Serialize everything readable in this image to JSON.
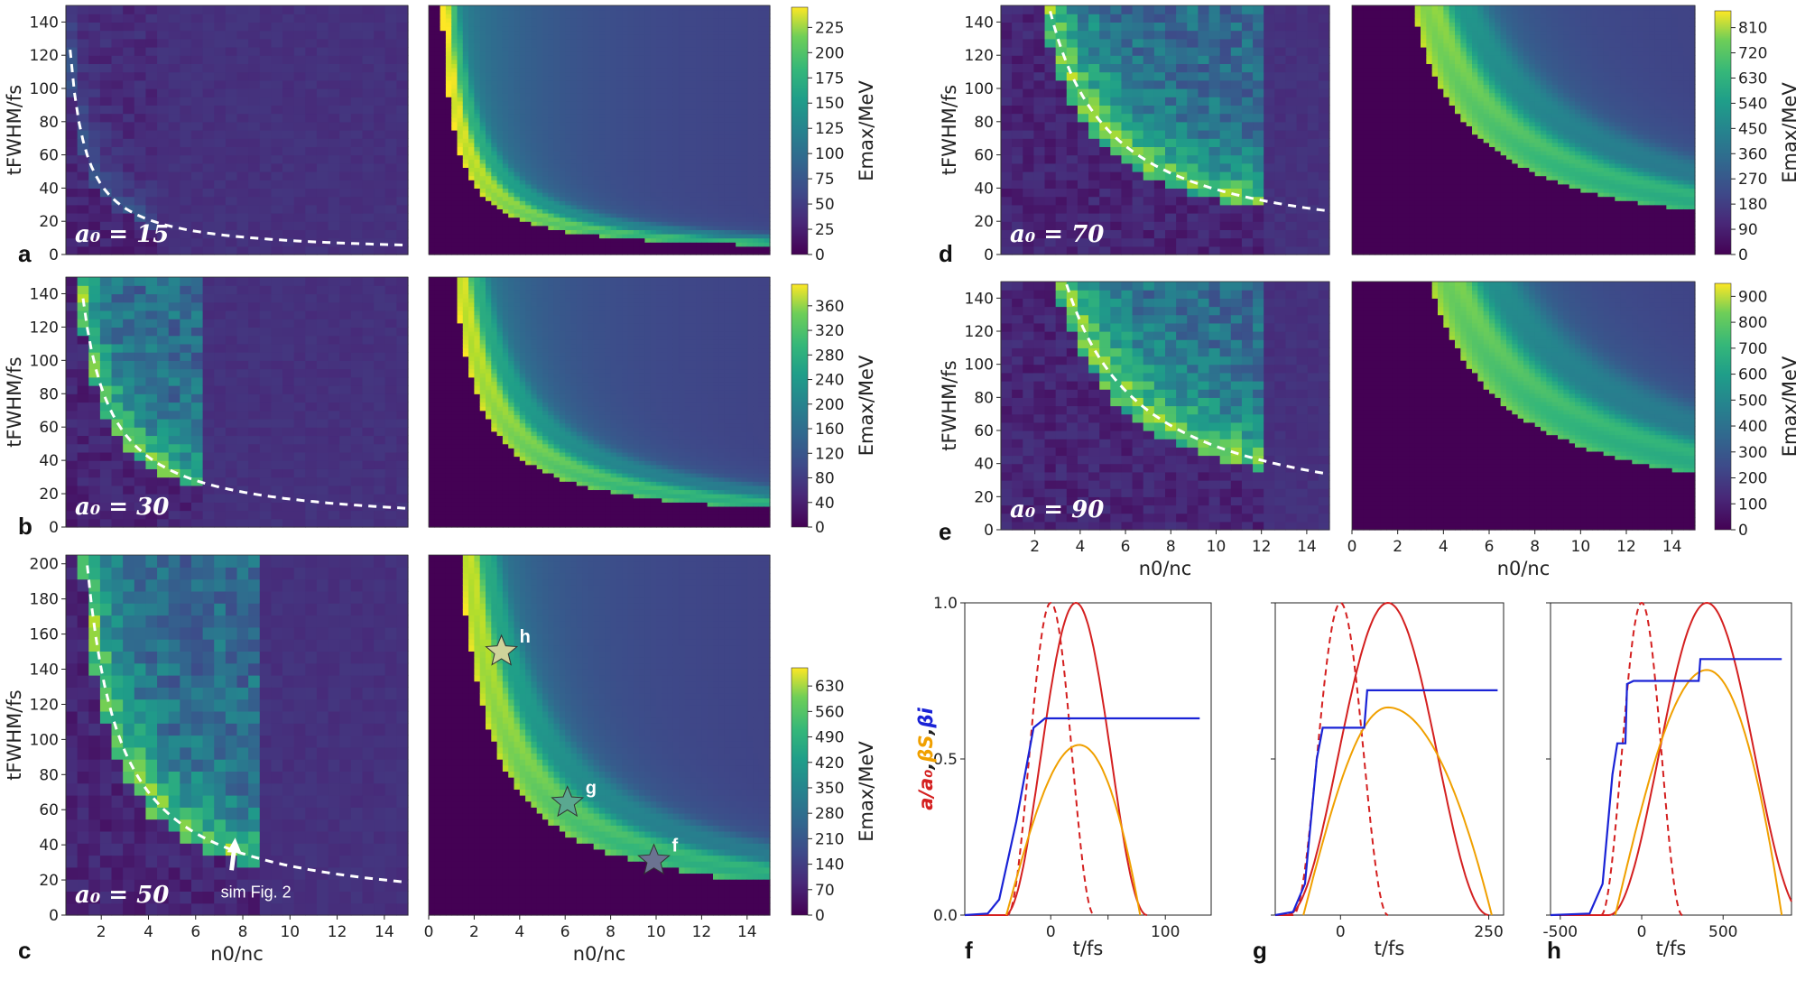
{
  "chart_data": {
    "type": "heatmap",
    "x_label": "n0/nc",
    "y_label": "tFWHM/fs",
    "colorbar_label": "Emax/MeV",
    "maps": [
      {
        "id": "a",
        "a0_label": "a₀ = 15",
        "a0": 15,
        "ylim": [
          0,
          150
        ],
        "yticks": [
          0,
          20,
          40,
          60,
          80,
          100,
          120,
          140
        ],
        "cbar_max": 245,
        "cbar_ticks": [
          0,
          25,
          50,
          75,
          100,
          125,
          150,
          175,
          200,
          225
        ]
      },
      {
        "id": "b",
        "a0_label": "a₀ = 30",
        "a0": 30,
        "ylim": [
          0,
          150
        ],
        "yticks": [
          0,
          20,
          40,
          60,
          80,
          100,
          120,
          140
        ],
        "cbar_max": 395,
        "cbar_ticks": [
          0,
          40,
          80,
          120,
          160,
          200,
          240,
          280,
          320,
          360
        ]
      },
      {
        "id": "c",
        "a0_label": "a₀ = 50",
        "a0": 50,
        "ylim": [
          0,
          205
        ],
        "yticks": [
          0,
          20,
          40,
          60,
          80,
          100,
          120,
          140,
          160,
          180,
          200
        ],
        "cbar_max": 680,
        "cbar_ticks": [
          0,
          70,
          140,
          210,
          280,
          350,
          420,
          490,
          560,
          630
        ]
      },
      {
        "id": "d",
        "a0_label": "a₀ = 70",
        "a0": 70,
        "ylim": [
          0,
          150
        ],
        "yticks": [
          0,
          20,
          40,
          60,
          80,
          100,
          120,
          140
        ],
        "cbar_max": 870,
        "cbar_ticks": [
          0,
          90,
          180,
          270,
          360,
          450,
          540,
          630,
          720,
          810
        ]
      },
      {
        "id": "e",
        "a0_label": "a₀ = 90",
        "a0": 90,
        "ylim": [
          0,
          150
        ],
        "yticks": [
          0,
          20,
          40,
          60,
          80,
          100,
          120,
          140
        ],
        "cbar_max": 950,
        "cbar_ticks": [
          0,
          100,
          200,
          300,
          400,
          500,
          600,
          700,
          800,
          900
        ]
      }
    ],
    "x_ticks_left": [
      2,
      4,
      6,
      8,
      10,
      12,
      14
    ],
    "x_ticks_right": [
      0,
      2,
      4,
      6,
      8,
      10,
      12,
      14
    ],
    "xlim": [
      0,
      15
    ],
    "stars": [
      {
        "label": "h",
        "n0": 3.2,
        "t": 150,
        "color": "#cfd39a"
      },
      {
        "label": "g",
        "n0": 6.1,
        "t": 64,
        "color": "#5aa890"
      },
      {
        "label": "f",
        "n0": 9.9,
        "t": 31,
        "color": "#6b7391"
      }
    ],
    "sim_annotation": "sim Fig. 2",
    "pulse_plots": {
      "y_label_parts": [
        "a/a₀",
        ",",
        "βS",
        ",",
        "βi"
      ],
      "x_label": "t/fs",
      "yticks": [
        0.0,
        0.5,
        1.0
      ],
      "panels": [
        {
          "id": "f",
          "xlim": [
            -75,
            140
          ],
          "xticks": [
            0,
            50,
            100
          ],
          "xtick_labels": [
            "0",
            "",
            "100"
          ],
          "a_solid": {
            "center": 22,
            "half": 62,
            "start": -60
          },
          "a_dashed": {
            "center": 0,
            "half": 38,
            "start": -40
          },
          "beta_s": {
            "peak": 0.545,
            "center": 25,
            "end": 78
          },
          "beta_i": [
            [
              -75,
              0
            ],
            [
              -55,
              0.005
            ],
            [
              -45,
              0.05
            ],
            [
              -30,
              0.3
            ],
            [
              -15,
              0.6
            ],
            [
              -5,
              0.63
            ],
            [
              130,
              0.63
            ]
          ]
        },
        {
          "id": "g",
          "xlim": [
            -110,
            275
          ],
          "xticks": [
            0,
            250
          ],
          "xtick_labels": [
            "0",
            "250"
          ],
          "a_solid": {
            "center": 80,
            "half": 170,
            "start": -110
          },
          "a_dashed": {
            "center": 0,
            "half": 80,
            "start": -90
          },
          "beta_s": {
            "peak": 0.665,
            "center": 80,
            "end": 255
          },
          "beta_i": [
            [
              -110,
              0
            ],
            [
              -80,
              0.01
            ],
            [
              -60,
              0.1
            ],
            [
              -40,
              0.5
            ],
            [
              -30,
              0.6
            ],
            [
              40,
              0.6
            ],
            [
              45,
              0.72
            ],
            [
              265,
              0.72
            ]
          ]
        },
        {
          "id": "h",
          "xlim": [
            -560,
            920
          ],
          "xticks": [
            -500,
            0,
            500
          ],
          "xtick_labels": [
            "-500",
            "0",
            "500"
          ],
          "a_solid": {
            "center": 400,
            "half": 600,
            "start": -350
          },
          "a_dashed": {
            "center": 0,
            "half": 250,
            "start": -250
          },
          "beta_s": {
            "peak": 0.785,
            "center": 400,
            "end": 860
          },
          "beta_i": [
            [
              -560,
              0
            ],
            [
              -320,
              0.005
            ],
            [
              -240,
              0.1
            ],
            [
              -180,
              0.45
            ],
            [
              -150,
              0.55
            ],
            [
              -100,
              0.55
            ],
            [
              -90,
              0.74
            ],
            [
              -50,
              0.75
            ],
            [
              350,
              0.75
            ],
            [
              360,
              0.82
            ],
            [
              860,
              0.82
            ]
          ]
        }
      ]
    }
  },
  "colors": {
    "red": "#d42020",
    "orange": "#f0a000",
    "blue": "#1a23d6",
    "white": "#ffffff"
  }
}
